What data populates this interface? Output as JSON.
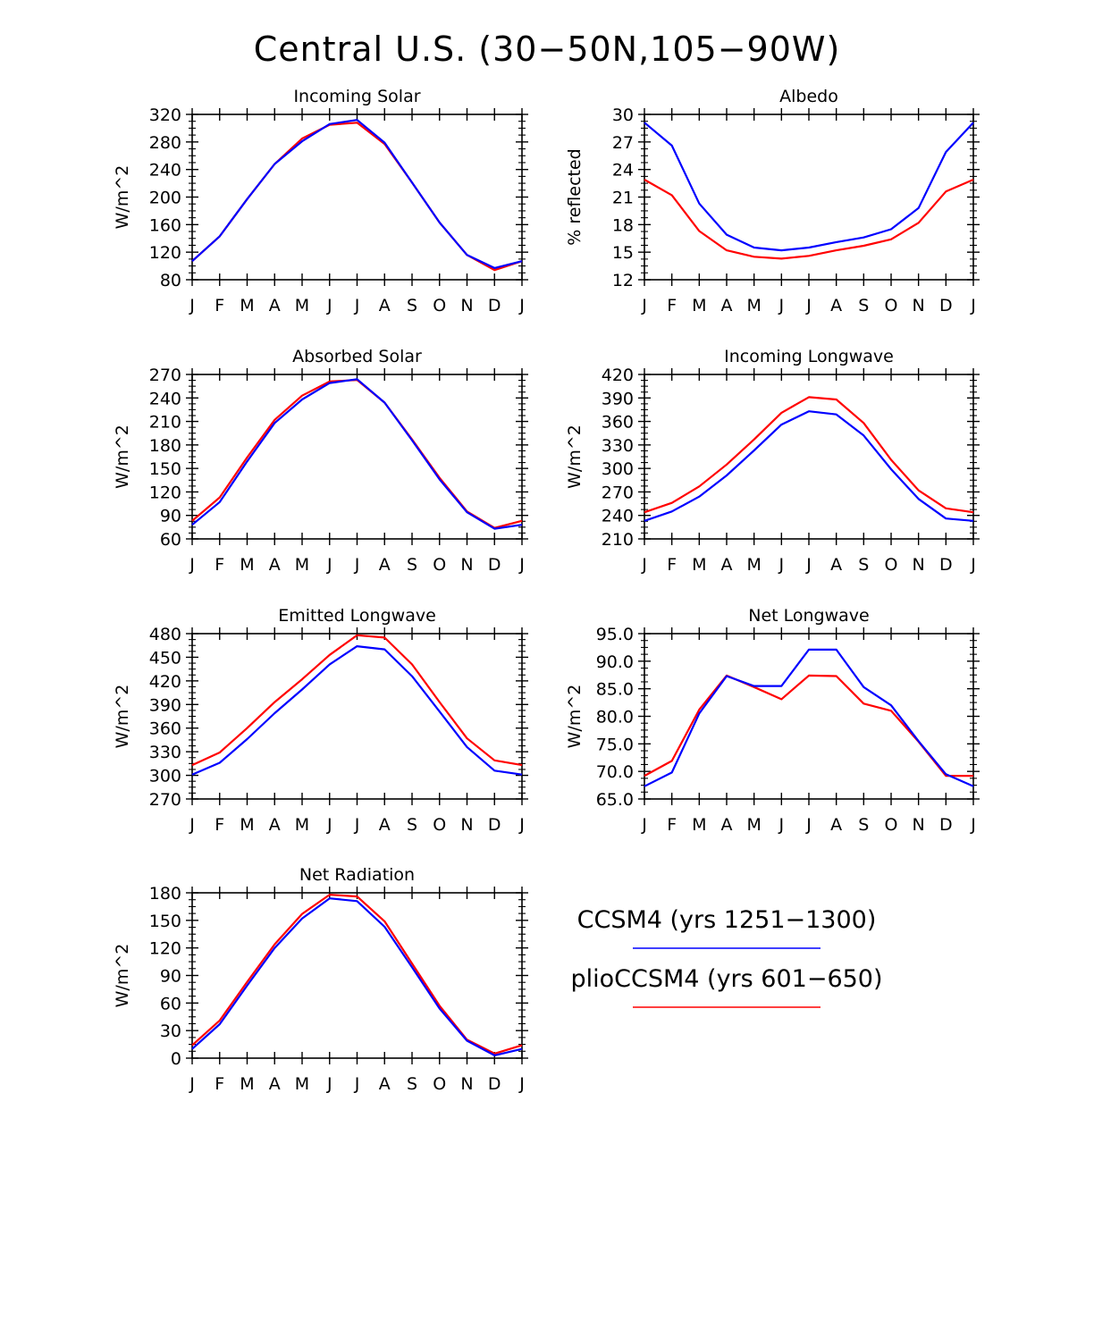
{
  "title": "Central U.S. (30−50N,105−90W)",
  "colors": {
    "ccsm4": "#0000ff",
    "plio": "#ff0000",
    "axes": "#000000"
  },
  "legend": {
    "ccsm4_label": "CCSM4 (yrs 1251−1300)",
    "plio_label": "plioCCSM4 (yrs 601−650)"
  },
  "months": [
    "J",
    "F",
    "M",
    "A",
    "M",
    "J",
    "J",
    "A",
    "S",
    "O",
    "N",
    "D",
    "J"
  ],
  "chart_data": [
    {
      "type": "line",
      "title": "Incoming Solar",
      "ylabel": "W/m^2",
      "ylim": [
        80,
        320
      ],
      "yticks": [
        80,
        120,
        160,
        200,
        240,
        280,
        320
      ],
      "ytick_labels": [
        "80",
        "120",
        "160",
        "200",
        "240",
        "280",
        "320"
      ],
      "series": [
        {
          "name": "CCSM4 (yrs 1251−1300)",
          "values": [
            107,
            143,
            197,
            248,
            281,
            306,
            312,
            279,
            221,
            163,
            116,
            97,
            107
          ]
        },
        {
          "name": "plioCCSM4 (yrs 601−650)",
          "values": [
            107,
            143,
            197,
            248,
            285,
            305,
            308,
            277,
            221,
            163,
            116,
            94,
            107
          ]
        }
      ]
    },
    {
      "type": "line",
      "title": "Albedo",
      "ylabel": "% reflected",
      "ylim": [
        12,
        30
      ],
      "yticks": [
        12,
        15,
        18,
        21,
        24,
        27,
        30
      ],
      "ytick_labels": [
        "12",
        "15",
        "18",
        "21",
        "24",
        "27",
        "30"
      ],
      "series": [
        {
          "name": "CCSM4 (yrs 1251−1300)",
          "values": [
            29.1,
            26.6,
            20.3,
            16.9,
            15.5,
            15.2,
            15.5,
            16.1,
            16.6,
            17.5,
            19.8,
            25.9,
            29.1
          ]
        },
        {
          "name": "plioCCSM4 (yrs 601−650)",
          "values": [
            22.9,
            21.2,
            17.3,
            15.2,
            14.5,
            14.3,
            14.6,
            15.2,
            15.7,
            16.4,
            18.2,
            21.6,
            22.9
          ]
        }
      ]
    },
    {
      "type": "line",
      "title": "Absorbed Solar",
      "ylabel": "W/m^2",
      "ylim": [
        60,
        270
      ],
      "yticks": [
        60,
        90,
        120,
        150,
        180,
        210,
        240,
        270
      ],
      "ytick_labels": [
        "60",
        "90",
        "120",
        "150",
        "180",
        "210",
        "240",
        "270"
      ],
      "series": [
        {
          "name": "CCSM4 (yrs 1251−1300)",
          "values": [
            78,
            107,
            159,
            208,
            238,
            259,
            264,
            234,
            186,
            136,
            94,
            73,
            78
          ]
        },
        {
          "name": "plioCCSM4 (yrs 601−650)",
          "values": [
            83,
            113,
            164,
            212,
            243,
            261,
            263,
            234,
            187,
            138,
            95,
            74,
            83
          ]
        }
      ]
    },
    {
      "type": "line",
      "title": "Incoming Longwave",
      "ylabel": "W/m^2",
      "ylim": [
        210,
        420
      ],
      "yticks": [
        210,
        240,
        270,
        300,
        330,
        360,
        390,
        420
      ],
      "ytick_labels": [
        "210",
        "240",
        "270",
        "300",
        "330",
        "360",
        "390",
        "420"
      ],
      "series": [
        {
          "name": "CCSM4 (yrs 1251−1300)",
          "values": [
            233,
            245,
            264,
            291,
            323,
            356,
            373,
            369,
            342,
            299,
            261,
            236,
            233
          ]
        },
        {
          "name": "plioCCSM4 (yrs 601−650)",
          "values": [
            244,
            256,
            277,
            305,
            337,
            371,
            391,
            388,
            358,
            311,
            272,
            249,
            244
          ]
        }
      ]
    },
    {
      "type": "line",
      "title": "Emitted Longwave",
      "ylabel": "W/m^2",
      "ylim": [
        270,
        480
      ],
      "yticks": [
        270,
        300,
        330,
        360,
        390,
        420,
        450,
        480
      ],
      "ytick_labels": [
        "270",
        "300",
        "330",
        "360",
        "390",
        "420",
        "450",
        "480"
      ],
      "series": [
        {
          "name": "CCSM4 (yrs 1251−1300)",
          "values": [
            301,
            316,
            346,
            379,
            409,
            441,
            464,
            460,
            426,
            381,
            336,
            306,
            301
          ]
        },
        {
          "name": "plioCCSM4 (yrs 601−650)",
          "values": [
            313,
            329,
            360,
            393,
            422,
            453,
            478,
            475,
            441,
            393,
            347,
            319,
            313
          ]
        }
      ]
    },
    {
      "type": "line",
      "title": "Net Longwave",
      "ylabel": "W/m^2",
      "ylim": [
        65.0,
        95.0
      ],
      "yticks": [
        65,
        70,
        75,
        80,
        85,
        90,
        95
      ],
      "ytick_labels": [
        "65.0",
        "70.0",
        "75.0",
        "80.0",
        "85.0",
        "90.0",
        "95.0"
      ],
      "series": [
        {
          "name": "CCSM4 (yrs 1251−1300)",
          "values": [
            67.3,
            69.8,
            80.5,
            87.3,
            85.5,
            85.5,
            92.1,
            92.1,
            85.3,
            82.0,
            75.5,
            69.5,
            67.3
          ]
        },
        {
          "name": "plioCCSM4 (yrs 601−650)",
          "values": [
            69.2,
            71.9,
            81.2,
            87.4,
            85.3,
            83.1,
            87.4,
            87.3,
            82.3,
            81.0,
            75.4,
            69.2,
            69.2
          ]
        }
      ]
    },
    {
      "type": "line",
      "title": "Net Radiation",
      "ylabel": "W/m^2",
      "ylim": [
        0,
        180
      ],
      "yticks": [
        0,
        30,
        60,
        90,
        120,
        150,
        180
      ],
      "ytick_labels": [
        "0",
        "30",
        "60",
        "90",
        "120",
        "150",
        "180"
      ],
      "series": [
        {
          "name": "CCSM4 (yrs 1251−1300)",
          "values": [
            10,
            37,
            79,
            120,
            152,
            174,
            171,
            143,
            99,
            54,
            19,
            3,
            10
          ]
        },
        {
          "name": "plioCCSM4 (yrs 601−650)",
          "values": [
            14,
            41,
            83,
            124,
            157,
            178,
            176,
            149,
            103,
            57,
            20,
            5,
            14
          ]
        }
      ]
    }
  ]
}
